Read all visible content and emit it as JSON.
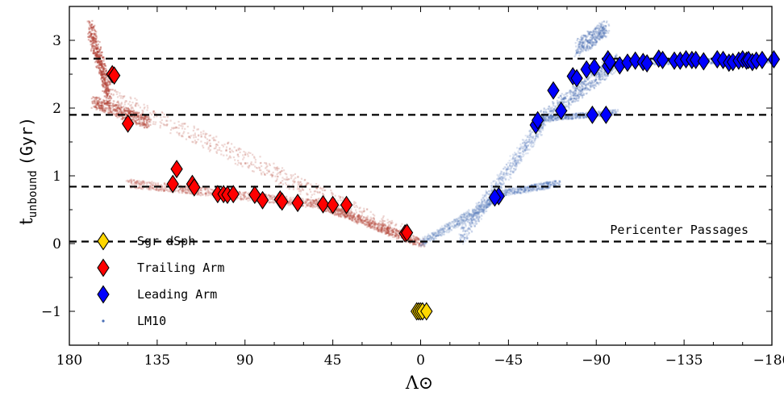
{
  "chart_data": {
    "type": "scatter",
    "title": "",
    "xlabel": "Λ⊙",
    "ylabel_main": "t",
    "ylabel_sub": "unbound",
    "ylabel_unit": "(Gyr)",
    "xlim": [
      180,
      -180
    ],
    "ylim": [
      -1.5,
      3.5
    ],
    "xticks": [
      180,
      135,
      90,
      45,
      0,
      -45,
      -90,
      -135,
      -180
    ],
    "xtick_labels": [
      "180",
      "135",
      "90",
      "45",
      "0",
      "−45",
      "−90",
      "−135",
      "−180"
    ],
    "yticks": [
      -1,
      0,
      1,
      2,
      3
    ],
    "ytick_labels": [
      "−1",
      "0",
      "1",
      "2",
      "3"
    ],
    "grid": false,
    "legend_position": "lower-left",
    "pericenter_lines": [
      0.03,
      0.84,
      1.9,
      2.73
    ],
    "annotation": "Pericenter Passages",
    "colors": {
      "sgr": "#FFD700",
      "trailing": "#FF0000",
      "leading": "#0000FF",
      "lm10_trailing": "#b03a2e",
      "lm10_leading": "#4a6fb5"
    },
    "series": [
      {
        "name": "Sgr dSph",
        "marker": "diamond",
        "points": [
          [
            2,
            -1.0
          ],
          [
            1,
            -1.0
          ],
          [
            0,
            -1.0
          ],
          [
            -1,
            -1.0
          ],
          [
            -3,
            -1.0
          ]
        ]
      },
      {
        "name": "Trailing Arm",
        "marker": "diamond",
        "points": [
          [
            158,
            2.5
          ],
          [
            157,
            2.48
          ],
          [
            150,
            1.77
          ],
          [
            125,
            1.1
          ],
          [
            127,
            0.88
          ],
          [
            117,
            0.88
          ],
          [
            116,
            0.83
          ],
          [
            104,
            0.73
          ],
          [
            101,
            0.73
          ],
          [
            99,
            0.72
          ],
          [
            96,
            0.73
          ],
          [
            85,
            0.72
          ],
          [
            81,
            0.64
          ],
          [
            72,
            0.65
          ],
          [
            71,
            0.62
          ],
          [
            63,
            0.6
          ],
          [
            50,
            0.58
          ],
          [
            45,
            0.57
          ],
          [
            38,
            0.57
          ],
          [
            8,
            0.15
          ],
          [
            7,
            0.16
          ]
        ]
      },
      {
        "name": "Leading Arm",
        "marker": "diamond",
        "points": [
          [
            -40,
            0.7
          ],
          [
            -38,
            0.68
          ],
          [
            -59,
            1.75
          ],
          [
            -60,
            1.82
          ],
          [
            -68,
            2.26
          ],
          [
            -72,
            1.96
          ],
          [
            -78,
            2.47
          ],
          [
            -80,
            2.44
          ],
          [
            -85,
            2.57
          ],
          [
            -89,
            2.6
          ],
          [
            -88,
            1.9
          ],
          [
            -95,
            1.9
          ],
          [
            -96,
            2.62
          ],
          [
            -96,
            2.72
          ],
          [
            -97,
            2.68
          ],
          [
            -102,
            2.63
          ],
          [
            -106,
            2.67
          ],
          [
            -110,
            2.7
          ],
          [
            -114,
            2.68
          ],
          [
            -116,
            2.66
          ],
          [
            -122,
            2.73
          ],
          [
            -124,
            2.71
          ],
          [
            -130,
            2.7
          ],
          [
            -133,
            2.7
          ],
          [
            -136,
            2.72
          ],
          [
            -139,
            2.71
          ],
          [
            -141,
            2.71
          ],
          [
            -145,
            2.69
          ],
          [
            -152,
            2.72
          ],
          [
            -155,
            2.71
          ],
          [
            -158,
            2.67
          ],
          [
            -160,
            2.68
          ],
          [
            -163,
            2.7
          ],
          [
            -165,
            2.72
          ],
          [
            -167,
            2.7
          ],
          [
            -168,
            2.71
          ],
          [
            -170,
            2.68
          ],
          [
            -172,
            2.7
          ],
          [
            -175,
            2.71
          ],
          [
            -181,
            2.72
          ]
        ]
      },
      {
        "name": "LM10",
        "marker": "point"
      }
    ]
  }
}
